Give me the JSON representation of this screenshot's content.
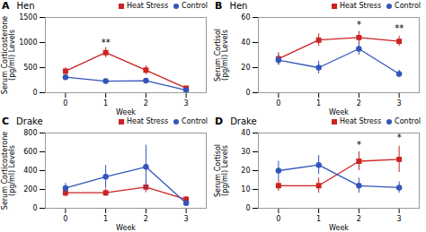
{
  "chart_data": [
    {
      "type": "line",
      "title": "Hen",
      "panel_label": "A",
      "x": [
        0,
        1,
        2,
        3
      ],
      "xlim": [
        -0.5,
        3.5
      ],
      "xticks": [
        0,
        1,
        2,
        3
      ],
      "xlabel": "Week",
      "ylim": [
        0,
        1500
      ],
      "yticks": [
        0,
        500,
        1000,
        1500
      ],
      "ylabel": "Serum Corticosterone\n(pg/ml) Levels",
      "grid": false,
      "legend": "upper right",
      "series": [
        {
          "name": "Heat Stress",
          "color": "#cc2222",
          "marker": "square",
          "values": [
            430,
            800,
            450,
            90
          ],
          "errors": [
            70,
            100,
            90,
            25
          ]
        },
        {
          "name": "Control",
          "color": "#3355bb",
          "marker": "circle",
          "values": [
            310,
            230,
            240,
            50
          ],
          "errors": [
            55,
            35,
            35,
            15
          ]
        }
      ],
      "annotations": [
        {
          "x": 1,
          "y": 940,
          "text": "**"
        }
      ]
    },
    {
      "type": "line",
      "title": "Hen",
      "panel_label": "B",
      "x": [
        0,
        1,
        2,
        3
      ],
      "xlim": [
        -0.5,
        3.5
      ],
      "xticks": [
        0,
        1,
        2,
        3
      ],
      "xlabel": "Week",
      "ylim": [
        0,
        60
      ],
      "yticks": [
        0,
        20,
        40,
        60
      ],
      "ylabel": "Serum Cortisol\n(pg/ml) Levels",
      "grid": false,
      "legend": "upper right",
      "series": [
        {
          "name": "Heat Stress",
          "color": "#cc2222",
          "marker": "square",
          "values": [
            27,
            42,
            44,
            41
          ],
          "errors": [
            5,
            5,
            5,
            4
          ]
        },
        {
          "name": "Control",
          "color": "#3355bb",
          "marker": "circle",
          "values": [
            26,
            20,
            35,
            15
          ],
          "errors": [
            4,
            5,
            5,
            3
          ]
        }
      ],
      "annotations": [
        {
          "x": 2,
          "y": 52,
          "text": "*"
        },
        {
          "x": 3,
          "y": 49,
          "text": "**"
        }
      ]
    },
    {
      "type": "line",
      "title": "Drake",
      "panel_label": "C",
      "x": [
        0,
        1,
        2,
        3
      ],
      "xlim": [
        -0.5,
        3.5
      ],
      "xticks": [
        0,
        1,
        2,
        3
      ],
      "xlabel": "Week",
      "ylim": [
        0,
        800
      ],
      "yticks": [
        0,
        200,
        400,
        600,
        800
      ],
      "ylabel": "Serum Corticosterone\n(pg/ml) Levels",
      "grid": false,
      "legend": "upper right",
      "series": [
        {
          "name": "Heat Stress",
          "color": "#cc2222",
          "marker": "square",
          "values": [
            165,
            165,
            225,
            95
          ],
          "errors": [
            45,
            40,
            60,
            30
          ]
        },
        {
          "name": "Control",
          "color": "#3355bb",
          "marker": "circle",
          "values": [
            215,
            335,
            440,
            55
          ],
          "errors": [
            50,
            120,
            230,
            20
          ]
        }
      ],
      "annotations": []
    },
    {
      "type": "line",
      "title": "Drake",
      "panel_label": "D",
      "x": [
        0,
        1,
        2,
        3
      ],
      "xlim": [
        -0.5,
        3.5
      ],
      "xticks": [
        0,
        1,
        2,
        3
      ],
      "xlabel": "Week",
      "ylim": [
        0,
        40
      ],
      "yticks": [
        0,
        10,
        20,
        30,
        40
      ],
      "ylabel": "Serum Cortisol\n(pg/ml) Levels",
      "grid": false,
      "legend": "upper right",
      "series": [
        {
          "name": "Heat Stress",
          "color": "#cc2222",
          "marker": "square",
          "values": [
            12,
            12,
            25,
            26
          ],
          "errors": [
            3,
            4,
            5,
            7
          ]
        },
        {
          "name": "Control",
          "color": "#3355bb",
          "marker": "circle",
          "values": [
            20,
            23,
            12,
            11
          ],
          "errors": [
            5,
            5,
            4,
            3
          ]
        }
      ],
      "annotations": [
        {
          "x": 2,
          "y": 32,
          "text": "*"
        },
        {
          "x": 3,
          "y": 36,
          "text": "*"
        }
      ]
    }
  ]
}
